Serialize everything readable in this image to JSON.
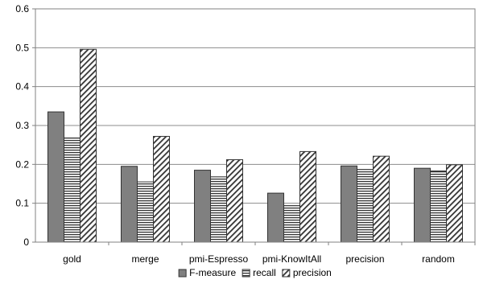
{
  "chart_data": {
    "type": "bar",
    "title": "",
    "xlabel": "",
    "ylabel": "",
    "ylim": [
      0,
      0.6
    ],
    "yticks": [
      "0",
      "0.1",
      "0.2",
      "0.3",
      "0.4",
      "0.5",
      "0.6"
    ],
    "grid": "horizontal",
    "legend_position": "bottom",
    "categories": [
      "gold",
      "merge",
      "pmi-Espresso",
      "pmi-KnowItAll",
      "precision",
      "random"
    ],
    "series": [
      {
        "name": "F-measure",
        "pattern": "solid-gray",
        "color": "#7f7f7f",
        "values": [
          0.335,
          0.195,
          0.185,
          0.126,
          0.196,
          0.19
        ]
      },
      {
        "name": "recall",
        "pattern": "horizontal-lines",
        "color": "#7f7f7f",
        "values": [
          0.268,
          0.155,
          0.168,
          0.094,
          0.187,
          0.183
        ]
      },
      {
        "name": "precision",
        "pattern": "diagonal-hatch",
        "color": "#7f7f7f",
        "values": [
          0.496,
          0.272,
          0.212,
          0.233,
          0.221,
          0.199
        ]
      }
    ]
  }
}
